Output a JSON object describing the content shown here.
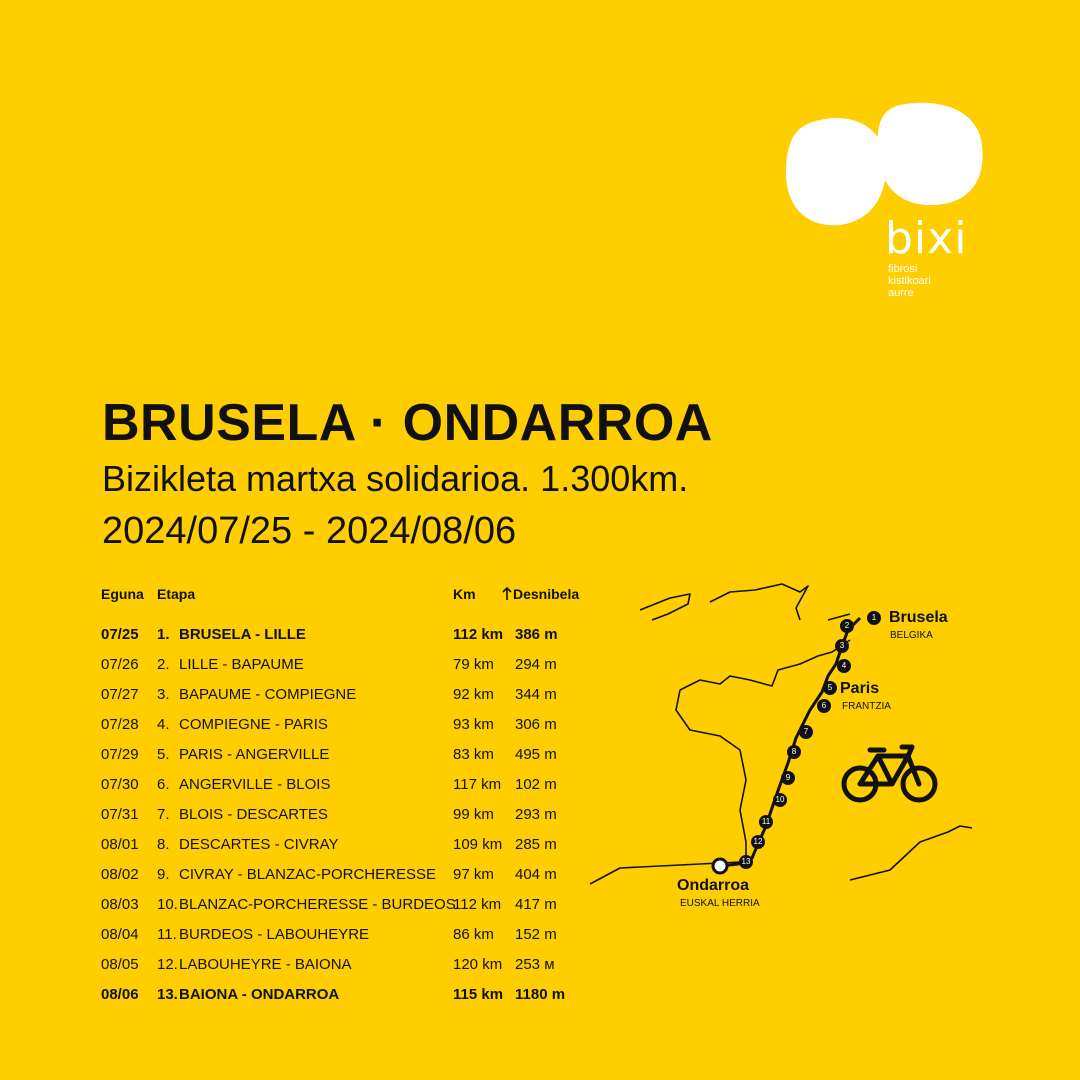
{
  "logo": {
    "word": "bixi",
    "tagline": [
      "fibrosi",
      "kistikoari",
      "aurre"
    ]
  },
  "title": "BRUSELA · ONDARROA",
  "subtitle": "Bizikleta martxa solidarioa. 1.300km.",
  "dates": "2024/07/25 - 2024/08/06",
  "table": {
    "headers": {
      "day": "Eguna",
      "stage": "Etapa",
      "km": "Km",
      "elevation": "Desnibela"
    },
    "rows": [
      {
        "date": "07/25",
        "num": "1.",
        "stage": "BRUSELA - LILLE",
        "km": "112 km",
        "elev": "386 m",
        "bold": true
      },
      {
        "date": "07/26",
        "num": "2.",
        "stage": "LILLE - BAPAUME",
        "km": "79 km",
        "elev": "294 m",
        "bold": false
      },
      {
        "date": "07/27",
        "num": "3.",
        "stage": "BAPAUME - COMPIEGNE",
        "km": "92 km",
        "elev": "344 m",
        "bold": false
      },
      {
        "date": "07/28",
        "num": "4.",
        "stage": "COMPIEGNE - PARIS",
        "km": "93 km",
        "elev": "306 m",
        "bold": false
      },
      {
        "date": "07/29",
        "num": "5.",
        "stage": "PARIS - ANGERVILLE",
        "km": "83 km",
        "elev": "495 m",
        "bold": false
      },
      {
        "date": "07/30",
        "num": "6.",
        "stage": "ANGERVILLE - BLOIS",
        "km": "117 km",
        "elev": "102 m",
        "bold": false
      },
      {
        "date": "07/31",
        "num": "7.",
        "stage": "BLOIS - DESCARTES",
        "km": "99 km",
        "elev": "293 m",
        "bold": false
      },
      {
        "date": "08/01",
        "num": "8.",
        "stage": "DESCARTES - CIVRAY",
        "km": "109 km",
        "elev": "285 m",
        "bold": false
      },
      {
        "date": "08/02",
        "num": "9.",
        "stage": "CIVRAY - BLANZAC-PORCHERESSE",
        "km": "97 km",
        "elev": "404 m",
        "bold": false
      },
      {
        "date": "08/03",
        "num": "10.",
        "stage": "BLANZAC-PORCHERESSE - BURDEOS",
        "km": "112 km",
        "elev": "417 m",
        "bold": false
      },
      {
        "date": "08/04",
        "num": "11.",
        "stage": "BURDEOS - LABOUHEYRE",
        "km": "86 km",
        "elev": "152 m",
        "bold": false
      },
      {
        "date": "08/05",
        "num": "12.",
        "stage": "LABOUHEYRE - BAIONA",
        "km": "120 km",
        "elev": "253 м",
        "bold": false
      },
      {
        "date": "08/06",
        "num": "13.",
        "stage": "BAIONA - ONDARROA",
        "km": "115 km",
        "elev": "1180 m",
        "bold": true
      }
    ]
  },
  "map": {
    "places": [
      {
        "name": "Brusela",
        "country": "BELGIKA"
      },
      {
        "name": "Paris",
        "country": "FRANTZIA"
      },
      {
        "name": "Ondarroa",
        "country": "EUSKAL HERRIA"
      }
    ],
    "stop_numbers": [
      "1",
      "2",
      "3",
      "4",
      "5",
      "6",
      "7",
      "8",
      "9",
      "10",
      "11",
      "12",
      "13"
    ],
    "icon": "bicycle-icon"
  },
  "colors": {
    "background": "#FFCE00",
    "text": "#111111",
    "logo": "#FFFFFF"
  }
}
